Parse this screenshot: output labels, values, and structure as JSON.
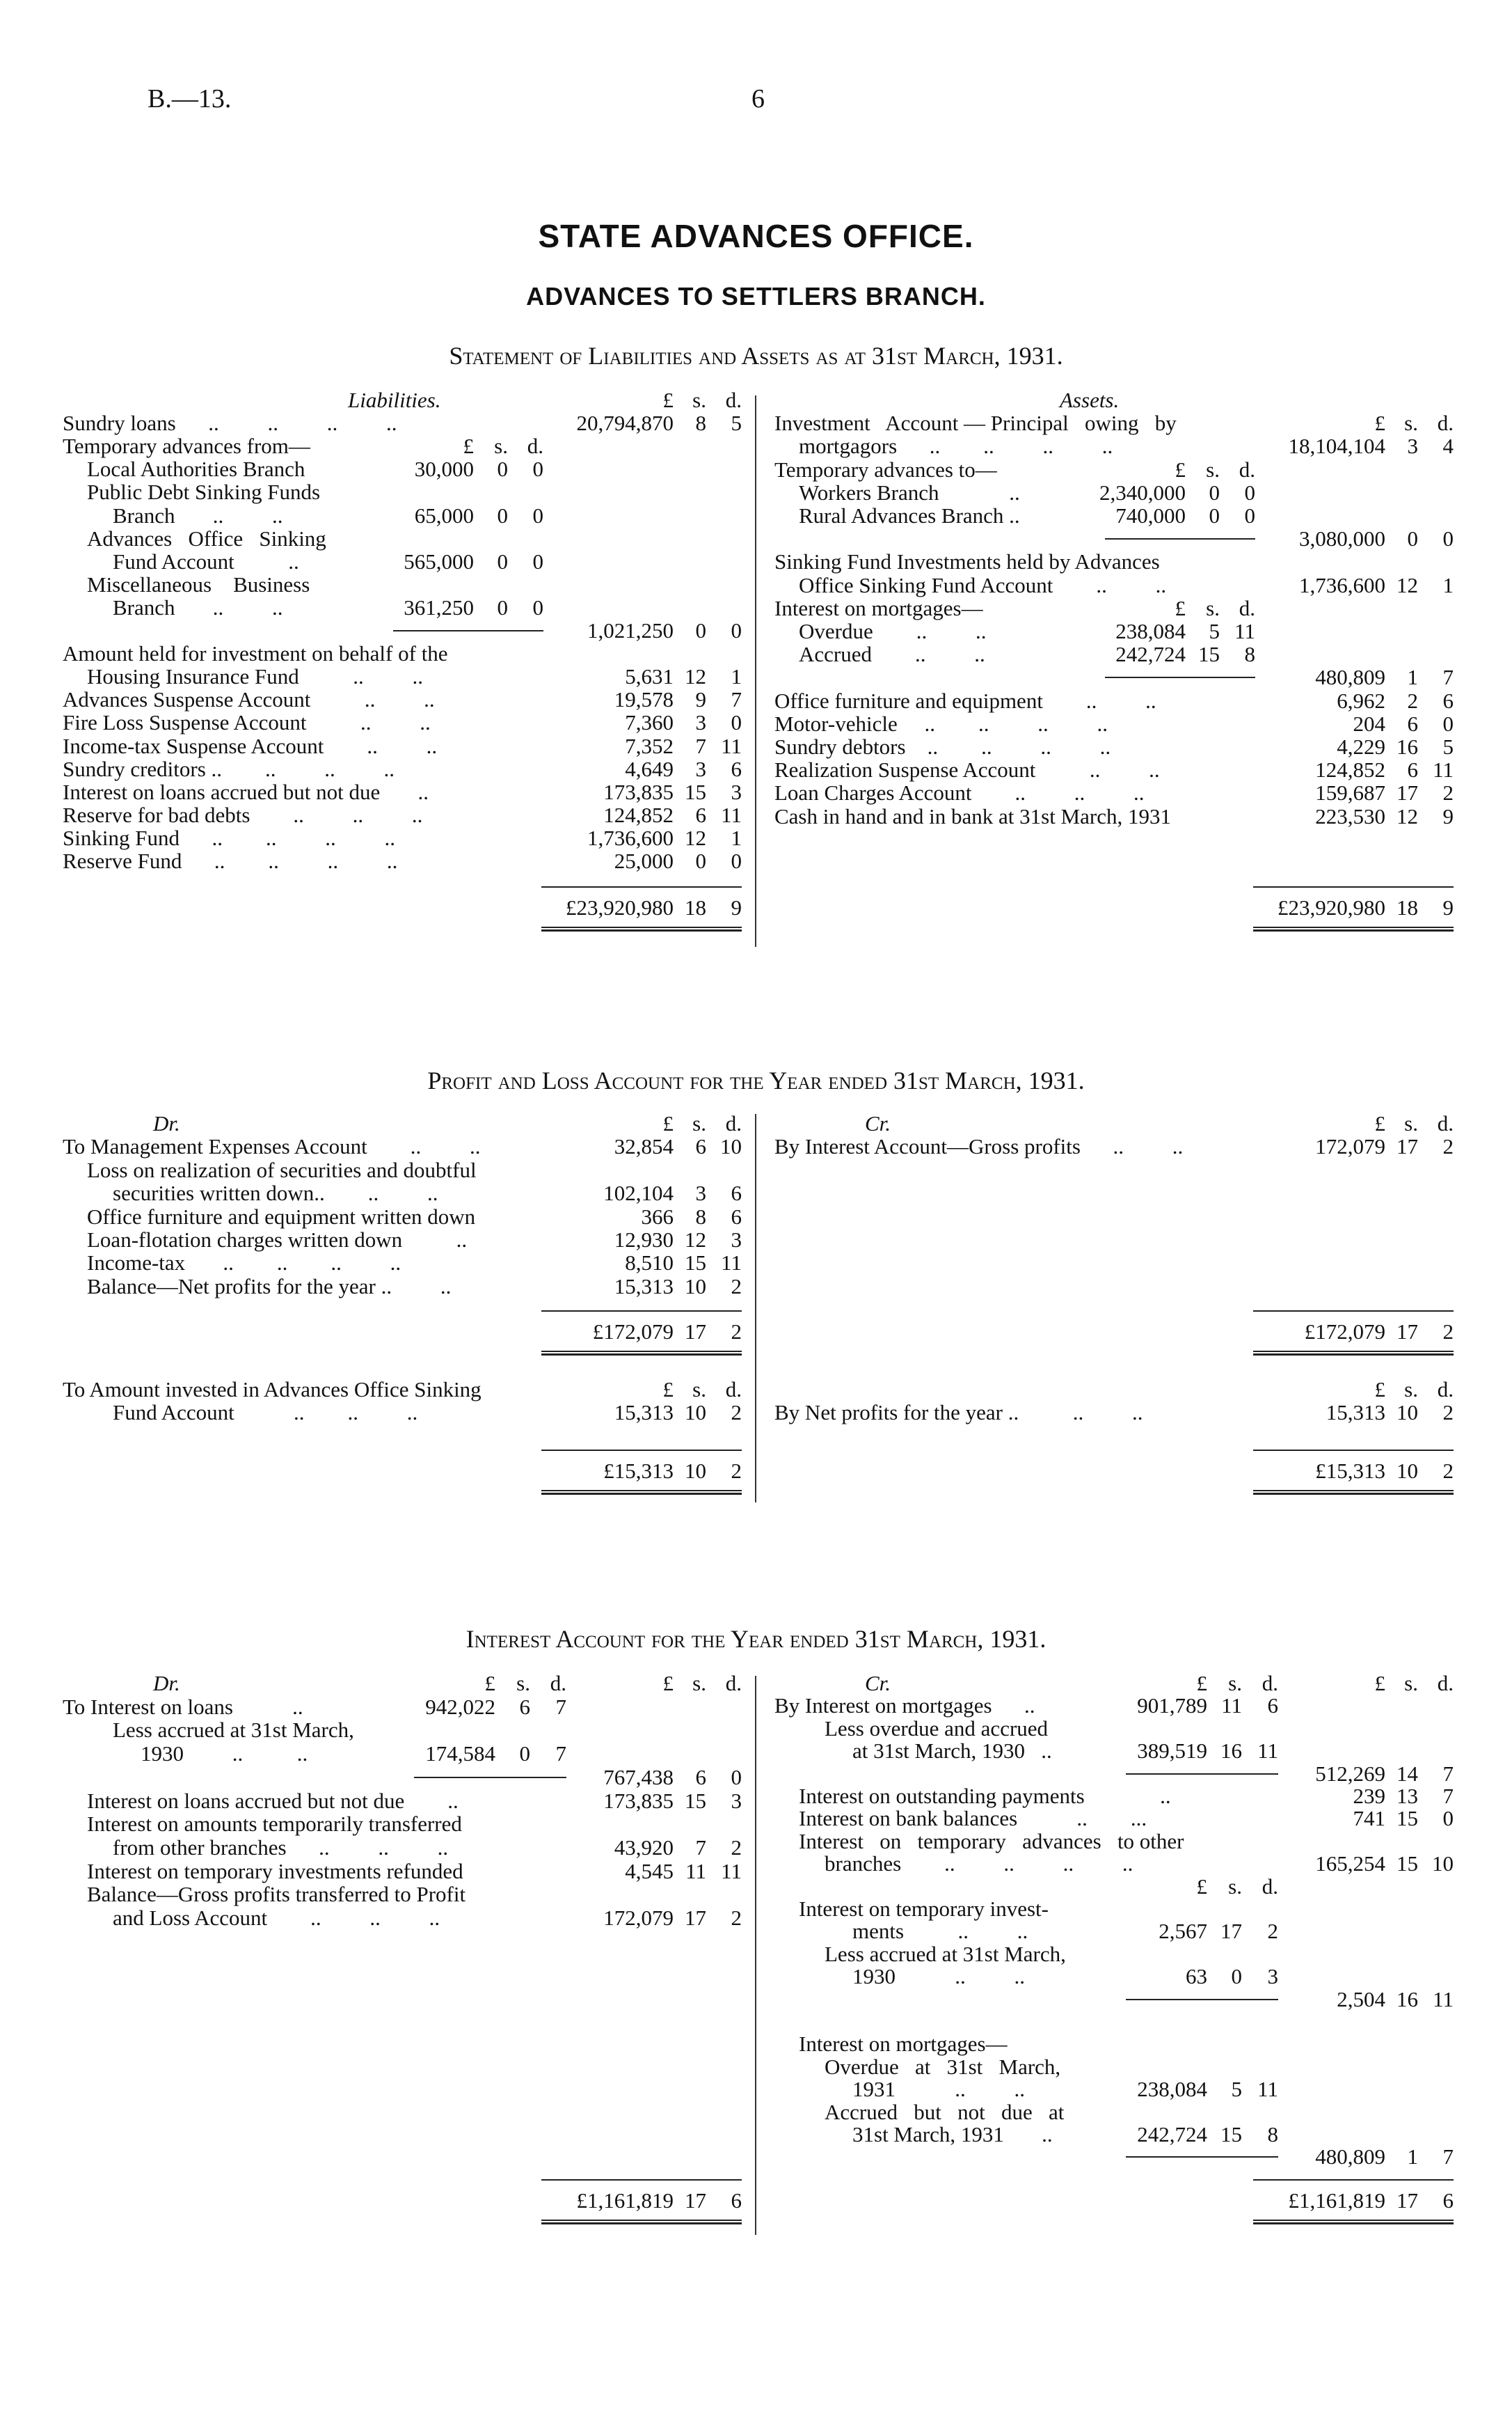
{
  "page": {
    "ref": "B.—13.",
    "number": "6"
  },
  "heading": {
    "office": "STATE ADVANCES OFFICE.",
    "branch": "ADVANCES TO SETTLERS BRANCH."
  },
  "balance_sheet": {
    "title": "Statement of Liabilities and Assets as at 31st March, 1931.",
    "liabilities": {
      "rows": [
        {
          "label": "Liabilities.",
          "style": "heading",
          "outer": [
            "£",
            "s.",
            "d."
          ]
        },
        {
          "label": "Sundry loans      ..         ..         ..         ..",
          "outer": [
            "20,794,870",
            "8",
            "5"
          ]
        },
        {
          "label": "Temporary advances from—",
          "inner": [
            "£",
            "s.",
            "d."
          ]
        },
        {
          "label": "Local Authorities Branch",
          "level": 1,
          "inner": [
            "30,000",
            "0",
            "0"
          ]
        },
        {
          "label": "Public Debt Sinking Funds",
          "level": 1
        },
        {
          "label": "Branch       ..         ..",
          "level": 2,
          "inner": [
            "65,000",
            "0",
            "0"
          ]
        },
        {
          "label": "Advances   Office   Sinking",
          "level": 1
        },
        {
          "label": "Fund Account          ..",
          "level": 2,
          "inner": [
            "565,000",
            "0",
            "0"
          ]
        },
        {
          "label": "Miscellaneous    Business",
          "level": 1
        },
        {
          "label": "Branch       ..         ..",
          "level": 2,
          "inner": [
            "361,250",
            "0",
            "0"
          ]
        },
        {
          "label": "",
          "subtotal": true,
          "outer": [
            "1,021,250",
            "0",
            "0"
          ]
        },
        {
          "label": "Amount held for investment on behalf of the"
        },
        {
          "label": "Housing Insurance Fund          ..         ..",
          "level": 1,
          "outer": [
            "5,631",
            "12",
            "1"
          ]
        },
        {
          "label": "Advances Suspense Account          ..         ..",
          "outer": [
            "19,578",
            "9",
            "7"
          ]
        },
        {
          "label": "Fire Loss Suspense Account          ..         ..",
          "outer": [
            "7,360",
            "3",
            "0"
          ]
        },
        {
          "label": "Income-tax Suspense Account        ..         ..",
          "outer": [
            "7,352",
            "7",
            "11"
          ]
        },
        {
          "label": "Sundry creditors ..        ..         ..         ..",
          "outer": [
            "4,649",
            "3",
            "6"
          ]
        },
        {
          "label": "Interest on loans accrued but not due       ..",
          "outer": [
            "173,835",
            "15",
            "3"
          ]
        },
        {
          "label": "Reserve for bad debts        ..         ..         ..",
          "outer": [
            "124,852",
            "6",
            "11"
          ]
        },
        {
          "label": "Sinking Fund      ..        ..         ..         ..",
          "outer": [
            "1,736,600",
            "12",
            "1"
          ]
        },
        {
          "label": "Reserve Fund      ..        ..         ..         ..",
          "outer": [
            "25,000",
            "0",
            "0"
          ]
        }
      ],
      "total": [
        "£23,920,980",
        "18",
        "9"
      ]
    },
    "assets": {
      "rows": [
        {
          "label": "Assets.",
          "style": "heading"
        },
        {
          "label": "Investment   Account — Principal   owing   by",
          "outer": [
            "£",
            "s.",
            "d."
          ]
        },
        {
          "label": "mortgagors      ..        ..         ..         ..",
          "level": 1,
          "outer": [
            "18,104,104",
            "3",
            "4"
          ]
        },
        {
          "label": "Temporary advances to—",
          "inner": [
            "£",
            "s.",
            "d."
          ]
        },
        {
          "label": "Workers Branch             ..",
          "level": 1,
          "inner": [
            "2,340,000",
            "0",
            "0"
          ]
        },
        {
          "label": "Rural Advances Branch ..",
          "level": 1,
          "inner": [
            "740,000",
            "0",
            "0"
          ]
        },
        {
          "label": "",
          "subtotal": true,
          "outer": [
            "3,080,000",
            "0",
            "0"
          ]
        },
        {
          "label": "Sinking Fund Investments held by Advances"
        },
        {
          "label": "Office Sinking Fund Account        ..         ..",
          "level": 1,
          "outer": [
            "1,736,600",
            "12",
            "1"
          ]
        },
        {
          "label": "Interest on mortgages—",
          "inner": [
            "£",
            "s.",
            "d."
          ]
        },
        {
          "label": "Overdue        ..         ..",
          "level": 1,
          "inner": [
            "238,084",
            "5",
            "11"
          ]
        },
        {
          "label": "Accrued        ..         ..",
          "level": 1,
          "inner": [
            "242,724",
            "15",
            "8"
          ]
        },
        {
          "label": "",
          "subtotal": true,
          "outer": [
            "480,809",
            "1",
            "7"
          ]
        },
        {
          "label": "Office furniture and equipment        ..         ..",
          "outer": [
            "6,962",
            "2",
            "6"
          ]
        },
        {
          "label": "Motor-vehicle     ..        ..         ..         ..",
          "outer": [
            "204",
            "6",
            "0"
          ]
        },
        {
          "label": "Sundry debtors    ..        ..         ..         ..",
          "outer": [
            "4,229",
            "16",
            "5"
          ]
        },
        {
          "label": "Realization Suspense Account          ..         ..",
          "outer": [
            "124,852",
            "6",
            "11"
          ]
        },
        {
          "label": "Loan Charges Account        ..         ..         ..",
          "outer": [
            "159,687",
            "17",
            "2"
          ]
        },
        {
          "label": "Cash in hand and in bank at 31st March, 1931",
          "outer": [
            "223,530",
            "12",
            "9"
          ]
        }
      ],
      "total": [
        "£23,920,980",
        "18",
        "9"
      ]
    }
  },
  "profit_and_loss": {
    "title": "Profit and Loss Account for the Year ended 31st March, 1931.",
    "debit": {
      "rows": [
        {
          "label": "Dr.",
          "style": "heading",
          "outer": [
            "£",
            "s.",
            "d."
          ]
        },
        {
          "label": "To Management Expenses Account        ..         ..",
          "outer": [
            "32,854",
            "6",
            "10"
          ]
        },
        {
          "label": "Loss on realization of securities and doubtful",
          "level": 1
        },
        {
          "label": "securities written down..        ..         ..",
          "level": 2,
          "outer": [
            "102,104",
            "3",
            "6"
          ]
        },
        {
          "label": "Office furniture and equipment written down",
          "level": 1,
          "outer": [
            "366",
            "8",
            "6"
          ]
        },
        {
          "label": "Loan-flotation charges written down          ..",
          "level": 1,
          "outer": [
            "12,930",
            "12",
            "3"
          ]
        },
        {
          "label": "Income-tax       ..        ..        ..         ..",
          "level": 1,
          "outer": [
            "8,510",
            "15",
            "11"
          ]
        },
        {
          "label": "Balance—Net profits for the year ..         ..",
          "level": 1,
          "outer": [
            "15,313",
            "10",
            "2"
          ]
        }
      ],
      "total": [
        "£172,079",
        "17",
        "2"
      ]
    },
    "credit": {
      "rows": [
        {
          "label": "Cr.",
          "style": "heading",
          "outer": [
            "£",
            "s.",
            "d."
          ]
        },
        {
          "label": "By Interest Account—Gross profits      ..         ..",
          "outer": [
            "172,079",
            "17",
            "2"
          ]
        }
      ],
      "total": [
        "£172,079",
        "17",
        "2"
      ]
    },
    "appropriation_debit": {
      "rows": [
        {
          "label": "To Amount invested in Advances Office Sinking",
          "outer": [
            "£",
            "s.",
            "d."
          ]
        },
        {
          "label": "Fund Account           ..        ..         ..",
          "level": 2,
          "outer": [
            "15,313",
            "10",
            "2"
          ]
        }
      ],
      "total": [
        "£15,313",
        "10",
        "2"
      ]
    },
    "appropriation_credit": {
      "rows": [
        {
          "label": "",
          "outer": [
            "£",
            "s.",
            "d."
          ]
        },
        {
          "label": "By Net profits for the year ..          ..         ..",
          "outer": [
            "15,313",
            "10",
            "2"
          ]
        }
      ],
      "total": [
        "£15,313",
        "10",
        "2"
      ]
    }
  },
  "interest_account": {
    "title": "Interest Account for the Year ended 31st March, 1931.",
    "debit": {
      "rows": [
        {
          "label": "Dr.",
          "style": "heading",
          "inner": [
            "£",
            "s.",
            "d."
          ],
          "outer": [
            "£",
            "s.",
            "d."
          ]
        },
        {
          "label": "To Interest on loans           ..",
          "inner": [
            "942,022",
            "6",
            "7"
          ]
        },
        {
          "label": "Less accrued at 31st March,",
          "level": 2
        },
        {
          "label": "1930         ..          ..",
          "level": 3,
          "inner": [
            "174,584",
            "0",
            "7"
          ]
        },
        {
          "label": "",
          "subtotal": true,
          "outer": [
            "767,438",
            "6",
            "0"
          ]
        },
        {
          "label": "Interest on loans accrued but not due        ..",
          "level": 1,
          "outer": [
            "173,835",
            "15",
            "3"
          ]
        },
        {
          "label": "Interest on amounts temporarily transferred",
          "level": 1
        },
        {
          "label": "from other branches      ..         ..         ..",
          "level": 2,
          "outer": [
            "43,920",
            "7",
            "2"
          ]
        },
        {
          "label": "Interest on temporary investments refunded",
          "level": 1,
          "outer": [
            "4,545",
            "11",
            "11"
          ]
        },
        {
          "label": "Balance—Gross profits transferred to Profit",
          "level": 1
        },
        {
          "label": "and Loss Account        ..         ..         ..",
          "level": 2,
          "outer": [
            "172,079",
            "17",
            "2"
          ]
        }
      ],
      "total": [
        "£1,161,819",
        "17",
        "6"
      ]
    },
    "credit": {
      "rows": [
        {
          "label": "Cr.",
          "style": "heading",
          "inner": [
            "£",
            "s.",
            "d."
          ],
          "outer": [
            "£",
            "s.",
            "d."
          ]
        },
        {
          "label": "By Interest on mortgages      ..",
          "inner": [
            "901,789",
            "11",
            "6"
          ]
        },
        {
          "label": "Less overdue and accrued",
          "level": 2
        },
        {
          "label": "at 31st March, 1930   ..",
          "level": 3,
          "inner": [
            "389,519",
            "16",
            "11"
          ]
        },
        {
          "label": "",
          "subtotal": true,
          "outer": [
            "512,269",
            "14",
            "7"
          ]
        },
        {
          "label": "Interest on outstanding payments              ..",
          "level": 1,
          "outer": [
            "239",
            "13",
            "7"
          ]
        },
        {
          "label": "Interest on bank balances           ..        ...",
          "level": 1,
          "outer": [
            "741",
            "15",
            "0"
          ]
        },
        {
          "label": "Interest   on   temporary   advances   to other",
          "level": 1
        },
        {
          "label": "branches        ..         ..         ..         ..",
          "level": 2,
          "outer": [
            "165,254",
            "15",
            "10"
          ]
        },
        {
          "label": "",
          "inner": [
            "£",
            "s.",
            "d."
          ]
        },
        {
          "label": "Interest on temporary invest-",
          "level": 1
        },
        {
          "label": "ments          ..         ..",
          "level": 3,
          "inner": [
            "2,567",
            "17",
            "2"
          ]
        },
        {
          "label": "Less accrued at 31st March,",
          "level": 2
        },
        {
          "label": "1930           ..         ..",
          "level": 3,
          "inner": [
            "63",
            "0",
            "3"
          ]
        },
        {
          "label": "",
          "subtotal": true,
          "outer": [
            "2,504",
            "16",
            "11"
          ]
        },
        {
          "label": ""
        },
        {
          "label": "Interest on mortgages—",
          "level": 1
        },
        {
          "label": "Overdue   at   31st   March,",
          "level": 2
        },
        {
          "label": "1931           ..         ..",
          "level": 3,
          "inner": [
            "238,084",
            "5",
            "11"
          ]
        },
        {
          "label": "Accrued   but   not   due   at",
          "level": 2
        },
        {
          "label": "31st March, 1931       ..",
          "level": 3,
          "inner": [
            "242,724",
            "15",
            "8"
          ]
        },
        {
          "label": "",
          "subtotal": true,
          "outer": [
            "480,809",
            "1",
            "7"
          ]
        }
      ],
      "total": [
        "£1,161,819",
        "17",
        "6"
      ]
    }
  }
}
